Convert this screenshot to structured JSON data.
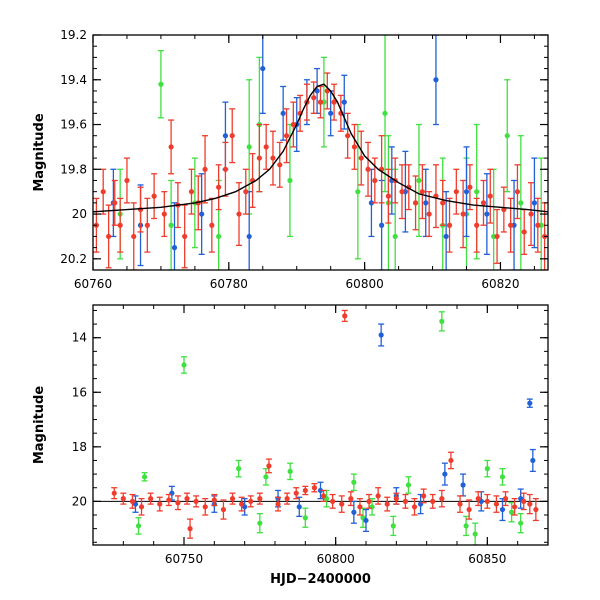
{
  "colors": {
    "blue": "#2060d8",
    "green": "#40e040",
    "red": "#f03c2c",
    "model": "#000000"
  },
  "chart_data": [
    {
      "type": "scatter",
      "title": "",
      "xlabel": "",
      "ylabel": "Magnitude",
      "xlim": [
        60760,
        60827
      ],
      "ylim": [
        20.25,
        19.2
      ],
      "y_inverted": true,
      "x_ticks": [
        60760,
        60780,
        60800,
        60820
      ],
      "x_tick_labels": [
        "60760",
        "60780",
        "60800",
        "60820"
      ],
      "y_ticks": [
        19.2,
        19.4,
        19.6,
        19.8,
        20.0,
        20.2
      ],
      "y_tick_labels": [
        "19.2",
        "19.4",
        "19.6",
        "19.8",
        "20",
        "20.2"
      ],
      "model_curve": {
        "x": [
          60760,
          60765,
          60770,
          60775,
          60778,
          60781,
          60784,
          60786,
          60788,
          60790,
          60791,
          60792,
          60793,
          60794,
          60795,
          60796,
          60797,
          60798,
          60800,
          60802,
          60805,
          60808,
          60812,
          60816,
          60820,
          60824,
          60827
        ],
        "y": [
          19.99,
          19.98,
          19.97,
          19.95,
          19.93,
          19.9,
          19.85,
          19.8,
          19.72,
          19.6,
          19.53,
          19.47,
          19.43,
          19.42,
          19.45,
          19.5,
          19.57,
          19.64,
          19.74,
          19.8,
          19.86,
          19.91,
          19.94,
          19.96,
          19.97,
          19.98,
          19.99
        ]
      },
      "series": [
        {
          "color": "red",
          "x": [
            60760.5,
            60761.5,
            60762.3,
            60763.2,
            60764,
            60765,
            60766,
            60767,
            60768,
            60769,
            60770.5,
            60771.5,
            60772.5,
            60773.5,
            60774.5,
            60775.5,
            60776.5,
            60777.5,
            60778.5,
            60779.5,
            60780.5,
            60781.5,
            60782.5,
            60783.5,
            60784.5,
            60785.5,
            60786.5,
            60787.5,
            60788.5,
            60789.5,
            60790.5,
            60791.5,
            60792.5,
            60793.5,
            60794.5,
            60795.5,
            60796.5,
            60797.5,
            60798.5,
            60799.5,
            60800.5,
            60801.5,
            60802.5,
            60803.5,
            60804.5,
            60805.5,
            60806.5,
            60807.5,
            60808.5,
            60809.5,
            60810.5,
            60811.5,
            60812.5,
            60813.5,
            60814.5,
            60815.5,
            60816.5,
            60817.5,
            60818.5,
            60819.5,
            60820.5,
            60821.5,
            60822.5,
            60823.5,
            60824.5,
            60825.5,
            60826.5
          ],
          "y": [
            20.05,
            19.9,
            20.1,
            19.95,
            20.05,
            19.85,
            20.1,
            19.98,
            20.05,
            19.92,
            20.0,
            19.7,
            19.96,
            20.1,
            19.9,
            19.95,
            19.8,
            20.05,
            19.88,
            19.8,
            19.65,
            20.0,
            19.9,
            19.85,
            19.75,
            19.7,
            19.75,
            19.78,
            19.65,
            19.6,
            19.55,
            19.5,
            19.48,
            19.5,
            19.45,
            19.5,
            19.55,
            19.65,
            19.7,
            19.75,
            19.8,
            19.85,
            19.8,
            19.92,
            19.85,
            19.9,
            19.88,
            19.95,
            19.9,
            20.0,
            19.92,
            19.95,
            20.05,
            19.9,
            20.0,
            19.88,
            20.05,
            19.95,
            19.92,
            20.1,
            19.98,
            20.05,
            19.9,
            20.08,
            20.0,
            20.05,
            20.1
          ],
          "err": [
            0.12,
            0.1,
            0.14,
            0.1,
            0.12,
            0.1,
            0.15,
            0.1,
            0.12,
            0.1,
            0.1,
            0.12,
            0.1,
            0.14,
            0.1,
            0.12,
            0.15,
            0.12,
            0.1,
            0.12,
            0.12,
            0.14,
            0.1,
            0.12,
            0.15,
            0.1,
            0.12,
            0.1,
            0.12,
            0.1,
            0.08,
            0.08,
            0.07,
            0.07,
            0.08,
            0.08,
            0.08,
            0.1,
            0.1,
            0.12,
            0.12,
            0.1,
            0.15,
            0.12,
            0.1,
            0.12,
            0.1,
            0.12,
            0.12,
            0.1,
            0.14,
            0.1,
            0.12,
            0.1,
            0.15,
            0.1,
            0.12,
            0.1,
            0.12,
            0.12,
            0.1,
            0.12,
            0.12,
            0.1,
            0.14,
            0.12,
            0.15
          ]
        },
        {
          "color": "blue",
          "x": [
            60763,
            60767,
            60772,
            60776,
            60779.5,
            60783,
            60785,
            60788,
            60790,
            60791.5,
            60793,
            60795,
            60797,
            60801,
            60802.5,
            60804,
            60806,
            60809,
            60810.5,
            60812,
            60815,
            60818,
            60822,
            60825
          ],
          "y": [
            19.95,
            20.05,
            20.15,
            20.0,
            19.65,
            20.1,
            19.35,
            19.55,
            19.6,
            19.5,
            19.45,
            19.55,
            19.5,
            19.95,
            20.05,
            19.85,
            19.9,
            19.95,
            19.4,
            20.1,
            19.9,
            20.0,
            20.05,
            19.95
          ],
          "err": [
            0.15,
            0.18,
            0.2,
            0.18,
            0.15,
            0.2,
            0.2,
            0.12,
            0.12,
            0.1,
            0.1,
            0.1,
            0.12,
            0.15,
            0.2,
            0.15,
            0.18,
            0.15,
            0.2,
            0.2,
            0.2,
            0.18,
            0.2,
            0.2
          ]
        },
        {
          "color": "green",
          "x": [
            60764,
            60770,
            60771.5,
            60775,
            60778.5,
            60783,
            60784.5,
            60789,
            60794,
            60799,
            60803,
            60803.5,
            60804.5,
            60808,
            60811.5,
            60815,
            60816.5,
            60819,
            60821,
            60823,
            60826
          ],
          "y": [
            20.0,
            19.42,
            20.05,
            19.95,
            20.1,
            19.7,
            19.6,
            19.85,
            19.5,
            19.9,
            19.55,
            19.95,
            20.1,
            19.85,
            20.05,
            20.0,
            19.9,
            20.1,
            19.65,
            19.95,
            20.05
          ],
          "err": [
            0.2,
            0.15,
            0.2,
            0.2,
            0.25,
            0.3,
            0.3,
            0.25,
            0.2,
            0.3,
            0.35,
            0.3,
            0.3,
            0.25,
            0.3,
            0.25,
            0.3,
            0.3,
            0.25,
            0.3,
            0.3
          ]
        }
      ]
    },
    {
      "type": "scatter",
      "title": "",
      "xlabel": "HJD−2400000",
      "ylabel": "Magnitude",
      "xlim": [
        60720,
        60870
      ],
      "ylim": [
        21.6,
        12.8
      ],
      "y_inverted": true,
      "x_ticks": [
        60750,
        60800,
        60850
      ],
      "x_tick_labels": [
        "60750",
        "60800",
        "60850"
      ],
      "y_ticks": [
        14,
        16,
        18,
        20
      ],
      "y_tick_labels": [
        "14",
        "16",
        "18",
        "20"
      ],
      "reference_line": 20.0,
      "series": [
        {
          "color": "red",
          "x": [
            60727,
            60730,
            60733,
            60736,
            60739,
            60742,
            60745,
            60748,
            60751,
            60752,
            60754,
            60757,
            60760,
            60763,
            60766,
            60769,
            60772,
            60775,
            60778,
            60781,
            60784,
            60787,
            60790,
            60793,
            60796,
            60799,
            60802,
            60803,
            60805,
            60808,
            60811,
            60814,
            60817,
            60820,
            60823,
            60826,
            60829,
            60832,
            60835,
            60838,
            60841,
            60844,
            60847,
            60850,
            60853,
            60856,
            60859,
            60862,
            60864,
            60866
          ],
          "y": [
            19.7,
            19.9,
            20.0,
            20.2,
            19.9,
            20.1,
            19.95,
            20.05,
            19.9,
            21.0,
            20.0,
            20.2,
            19.95,
            20.3,
            19.9,
            20.1,
            20.0,
            19.9,
            18.7,
            20.1,
            19.9,
            19.7,
            19.6,
            19.5,
            19.8,
            20.0,
            20.1,
            13.2,
            19.9,
            20.2,
            20.0,
            19.8,
            20.1,
            19.9,
            20.0,
            20.2,
            19.8,
            20.0,
            19.9,
            18.5,
            20.1,
            20.3,
            19.9,
            20.0,
            20.1,
            19.9,
            20.2,
            20.0,
            20.1,
            20.3
          ],
          "err": [
            0.2,
            0.2,
            0.25,
            0.3,
            0.2,
            0.25,
            0.2,
            0.25,
            0.2,
            0.35,
            0.2,
            0.3,
            0.2,
            0.35,
            0.2,
            0.25,
            0.2,
            0.2,
            0.25,
            0.25,
            0.2,
            0.2,
            0.15,
            0.15,
            0.2,
            0.25,
            0.3,
            0.2,
            0.25,
            0.3,
            0.25,
            0.3,
            0.25,
            0.2,
            0.25,
            0.3,
            0.25,
            0.25,
            0.3,
            0.3,
            0.3,
            0.35,
            0.25,
            0.25,
            0.3,
            0.25,
            0.3,
            0.3,
            0.35,
            0.4
          ]
        },
        {
          "color": "blue",
          "x": [
            60734,
            60746,
            60760,
            60770,
            60781,
            60788,
            60795,
            60806,
            60810,
            60815,
            60820,
            60828,
            60836,
            60842,
            60848,
            60855,
            60861,
            60864,
            60865
          ],
          "y": [
            20.1,
            19.7,
            20.1,
            20.2,
            19.9,
            20.2,
            19.6,
            20.4,
            20.7,
            13.9,
            19.8,
            20.1,
            19.0,
            19.4,
            20.0,
            20.3,
            19.9,
            16.4,
            18.5
          ],
          "err": [
            0.3,
            0.25,
            0.3,
            0.3,
            0.3,
            0.35,
            0.3,
            0.4,
            0.4,
            0.4,
            0.3,
            0.35,
            0.4,
            0.4,
            0.35,
            0.4,
            0.35,
            0.15,
            0.4
          ]
        },
        {
          "color": "green",
          "x": [
            60735,
            60737,
            60750,
            60768,
            60775,
            60777,
            60785,
            60790,
            60797,
            60806,
            60809,
            60812,
            60819,
            60824,
            60835,
            60843,
            60846,
            60850,
            60855,
            60858,
            60861
          ],
          "y": [
            20.9,
            19.1,
            15.0,
            18.8,
            20.8,
            19.1,
            18.9,
            20.6,
            19.9,
            19.3,
            20.6,
            20.2,
            20.9,
            19.4,
            13.4,
            20.9,
            21.2,
            18.8,
            19.1,
            20.4,
            20.8
          ],
          "err": [
            0.3,
            0.15,
            0.3,
            0.3,
            0.35,
            0.3,
            0.3,
            0.35,
            0.3,
            0.3,
            0.35,
            0.3,
            0.35,
            0.3,
            0.35,
            0.35,
            0.4,
            0.3,
            0.3,
            0.35,
            0.35
          ]
        }
      ]
    }
  ]
}
